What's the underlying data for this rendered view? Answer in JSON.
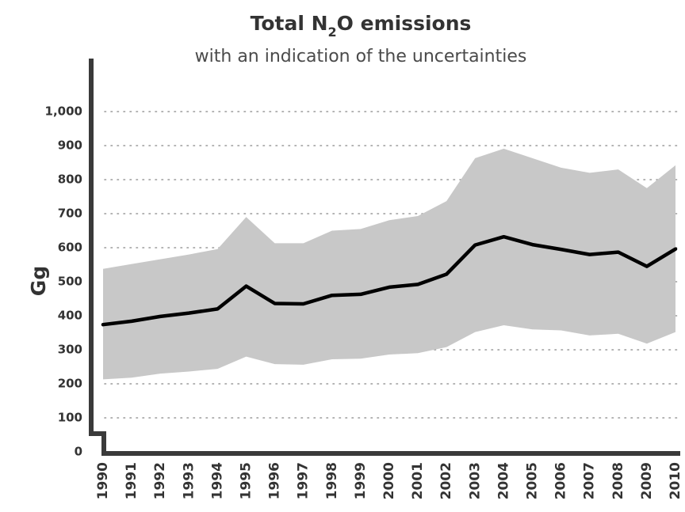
{
  "chart_data": {
    "type": "area",
    "title_main": "Total N",
    "title_sub": "2",
    "title_end": "O emissions",
    "subtitle": "with an indication of the uncertainties",
    "ylabel": "Gg",
    "xlabel": "",
    "ylim": [
      0,
      1100
    ],
    "grid": true,
    "legend": "none",
    "y_ticks": [
      "0",
      "100",
      "200",
      "300",
      "400",
      "500",
      "600",
      "700",
      "800",
      "900",
      "1,000"
    ],
    "x": [
      "1990",
      "1991",
      "1992",
      "1993",
      "1994",
      "1995",
      "1996",
      "1997",
      "1998",
      "1999",
      "2000",
      "2001",
      "2002",
      "2003",
      "2004",
      "2005",
      "2006",
      "2007",
      "2008",
      "2009",
      "2010"
    ],
    "series": [
      {
        "values": [
          374,
          384,
          398,
          408,
          420,
          487,
          436,
          435,
          460,
          463,
          484,
          492,
          522,
          608,
          632,
          609,
          595,
          580,
          587,
          545,
          596
        ]
      }
    ],
    "uncertainty_upper": [
      538,
      552,
      566,
      580,
      596,
      690,
      613,
      613,
      650,
      655,
      681,
      693,
      737,
      863,
      891,
      863,
      835,
      820,
      830,
      775,
      842
    ],
    "uncertainty_lower": [
      213,
      218,
      230,
      236,
      244,
      280,
      258,
      256,
      272,
      274,
      286,
      290,
      308,
      352,
      372,
      360,
      357,
      342,
      347,
      318,
      352
    ],
    "colors": {
      "line": "#000000",
      "band": "#c8c8c8",
      "axis": "#3a3a3a",
      "grid": "#9a9a9a"
    }
  }
}
